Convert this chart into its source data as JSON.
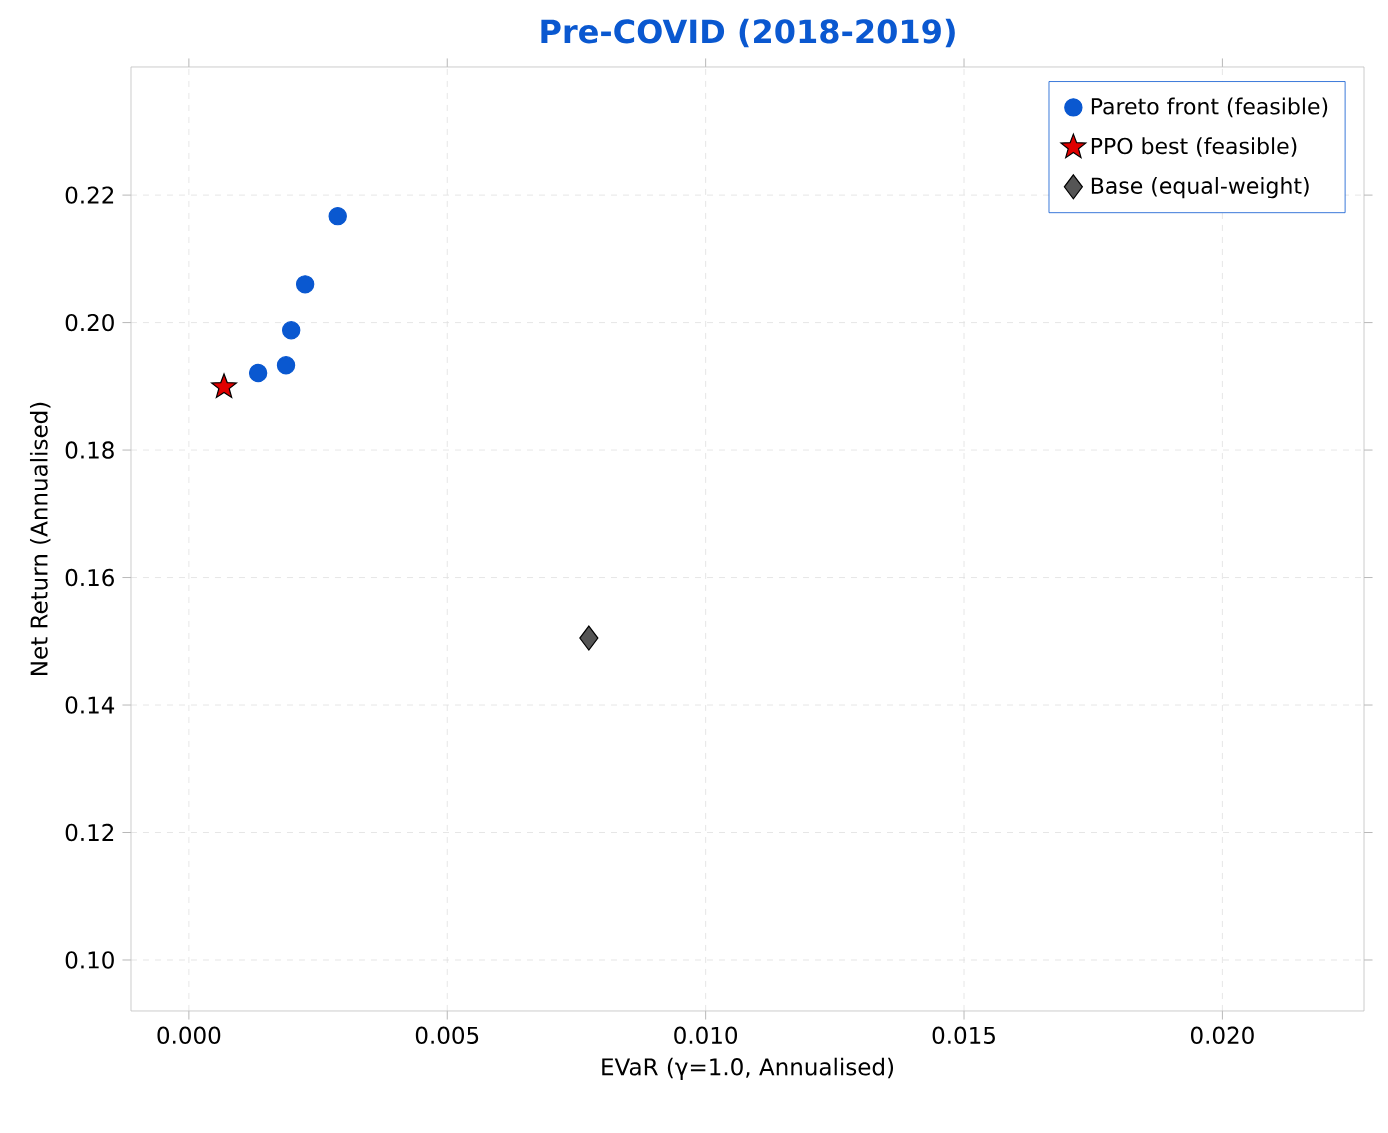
{
  "chart_data": {
    "type": "scatter",
    "title": "Pre-COVID (2018-2019)",
    "xlabel": "EVaR  (γ=1.0,  Annualised)",
    "ylabel": "Net Return (Annualised)",
    "xlim": [
      -0.00112,
      0.02274
    ],
    "ylim": [
      0.092,
      0.2401
    ],
    "xticks": [
      {
        "value": 0,
        "label": "0.000"
      },
      {
        "value": 0.005,
        "label": "0.005"
      },
      {
        "value": 0.01,
        "label": "0.010"
      },
      {
        "value": 0.015,
        "label": "0.015"
      },
      {
        "value": 0.02,
        "label": "0.020"
      }
    ],
    "yticks": [
      {
        "value": 0.1,
        "label": "0.10"
      },
      {
        "value": 0.12,
        "label": "0.12"
      },
      {
        "value": 0.14,
        "label": "0.14"
      },
      {
        "value": 0.16,
        "label": "0.16"
      },
      {
        "value": 0.18,
        "label": "0.18"
      },
      {
        "value": 0.2,
        "label": "0.20"
      },
      {
        "value": 0.22,
        "label": "0.22"
      }
    ],
    "grid": true,
    "legend": "top right",
    "series": [
      {
        "name": "Pareto front  (feasible)",
        "color": "#0a58d0",
        "marker": "circle",
        "x": [
          0.00134,
          0.00188,
          0.00198,
          0.00225,
          0.00288
        ],
        "values": [
          0.1921,
          0.1933,
          0.1988,
          0.206,
          0.2167
        ]
      },
      {
        "name": "PPO best  (feasible)",
        "color": "#e00000",
        "marker": "star",
        "x": [
          0.00068
        ],
        "values": [
          0.1899
        ]
      },
      {
        "name": "Base (equal-weight)",
        "color": "#555555",
        "marker": "diamond",
        "x": [
          0.00774
        ],
        "values": [
          0.1505
        ]
      }
    ]
  }
}
